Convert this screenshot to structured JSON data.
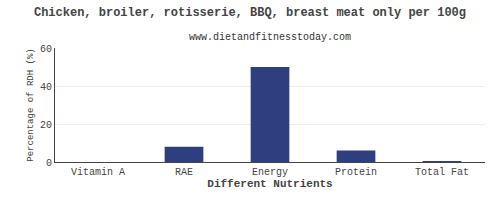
{
  "chart_data": {
    "type": "bar",
    "title": "Chicken, broiler, rotisserie, BBQ, breast meat only per 100g",
    "subtitle": "www.dietandfitnesstoday.com",
    "xlabel": "Different Nutrients",
    "ylabel": "Percentage of RDH (%)",
    "categories": [
      "Vitamin A",
      "RAE",
      "Energy",
      "Protein",
      "Total Fat"
    ],
    "values": [
      0.0,
      8.0,
      50.0,
      6.0,
      0.5
    ],
    "color": "#2e3f7f",
    "ylim": [
      0,
      60
    ],
    "yticks": [
      0,
      20,
      40,
      60
    ],
    "grid": true
  }
}
